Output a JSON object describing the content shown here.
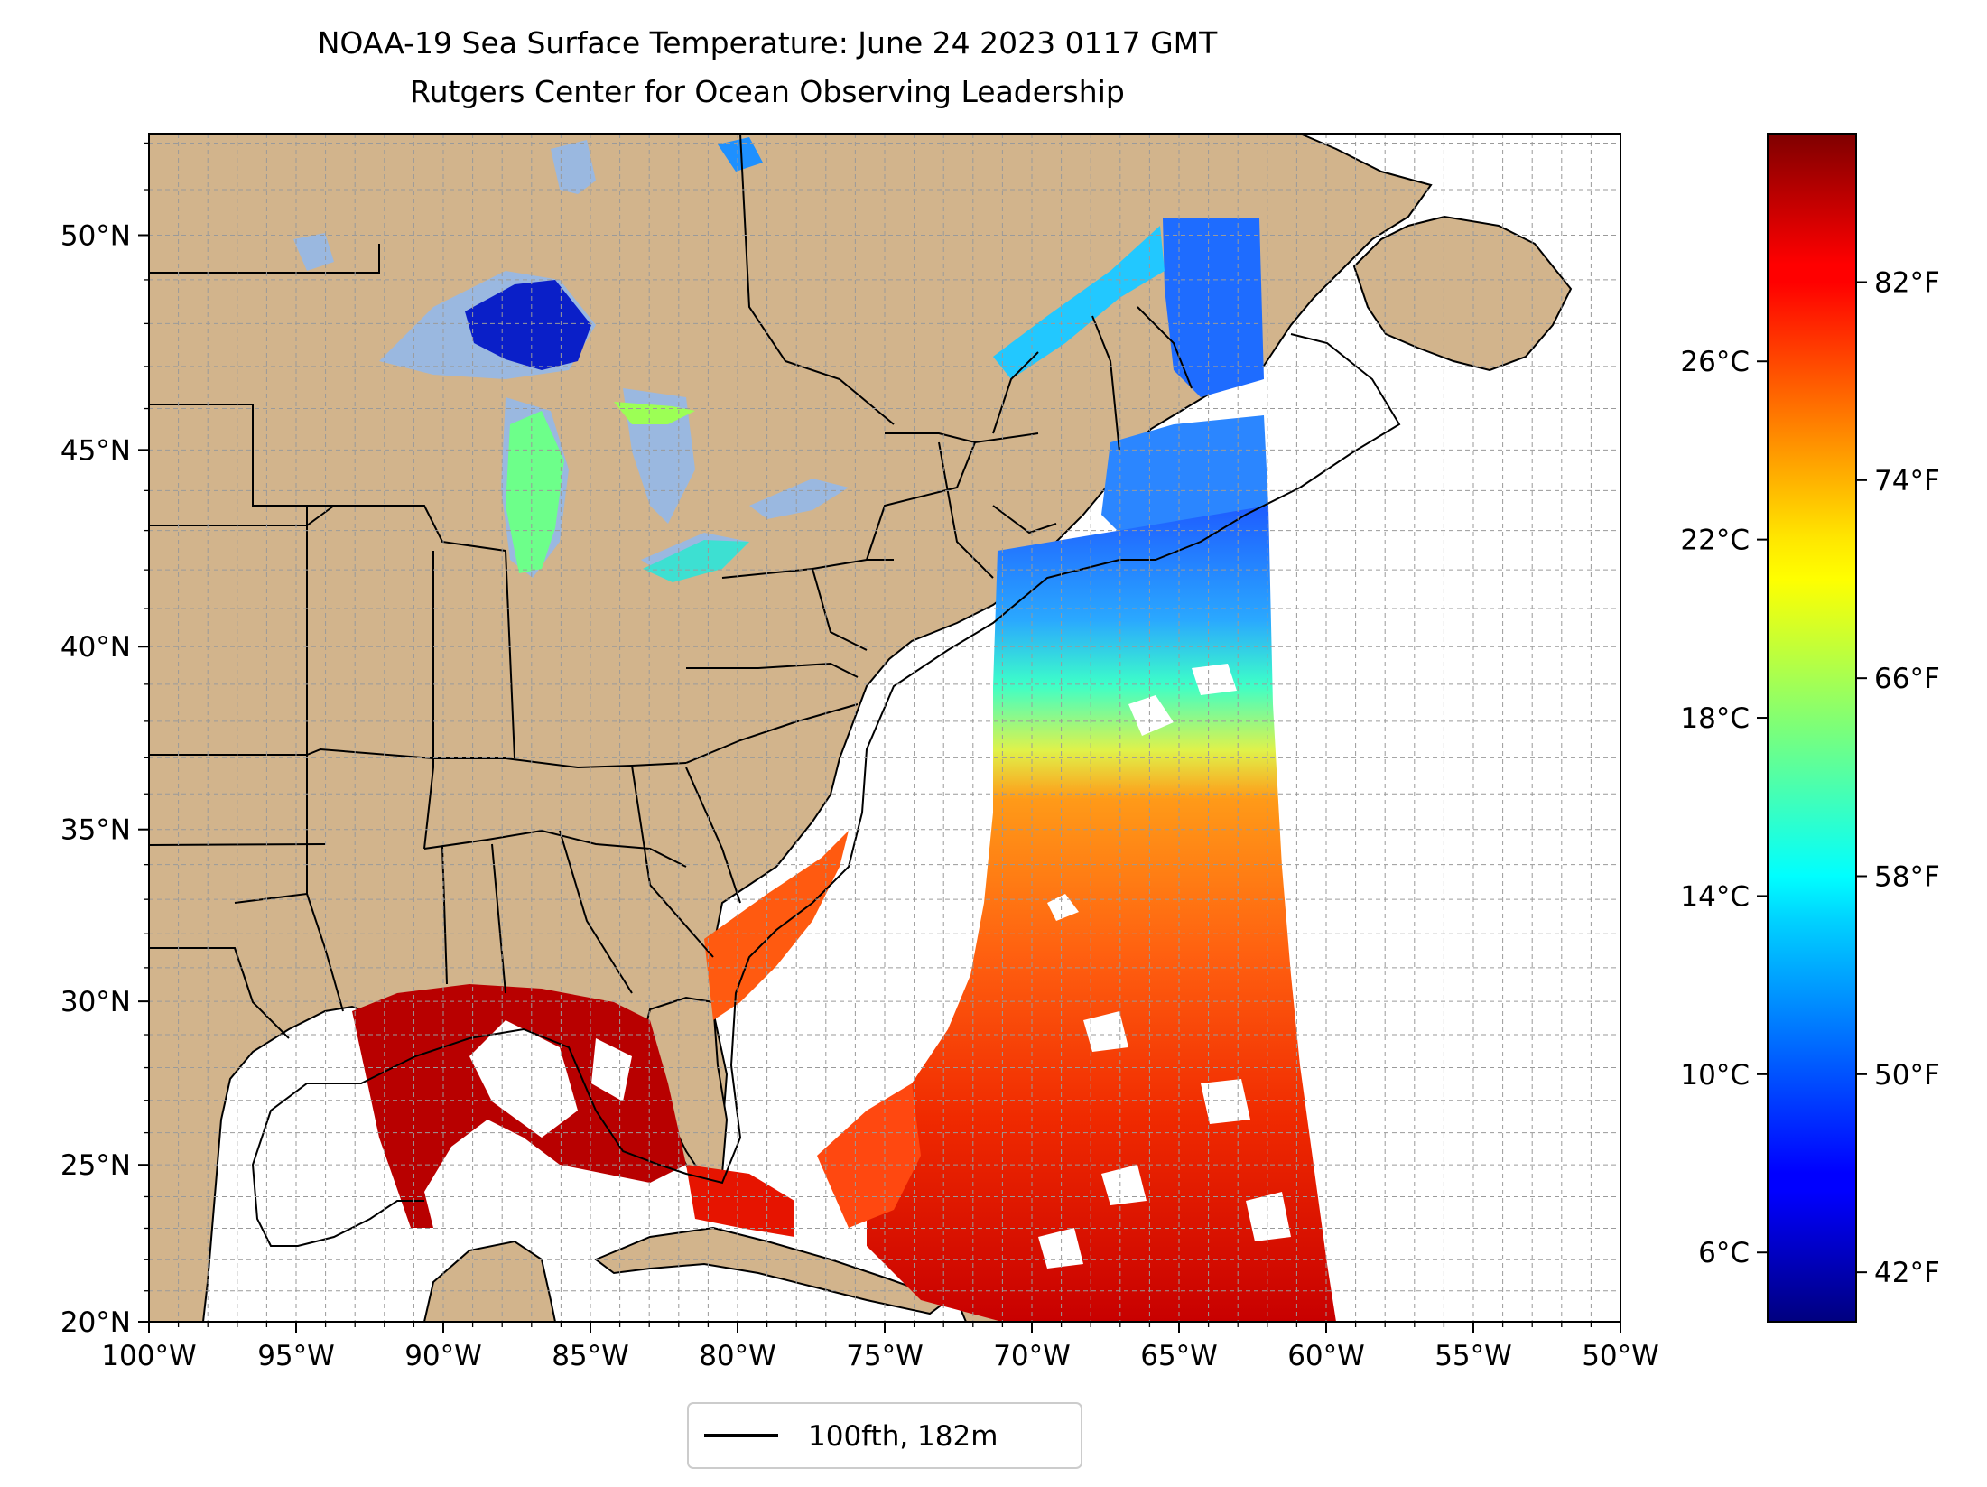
{
  "title": "NOAA-19 Sea Surface Temperature: June 24 2023 0117 GMT",
  "subtitle": "Rutgers Center for Ocean Observing Leadership",
  "map": {
    "extent": {
      "lon": [
        -100,
        -50
      ],
      "lat": [
        20,
        52.2
      ]
    },
    "lon_ticks": [
      {
        "value": -100,
        "label": "100°W"
      },
      {
        "value": -95,
        "label": "95°W"
      },
      {
        "value": -90,
        "label": "90°W"
      },
      {
        "value": -85,
        "label": "85°W"
      },
      {
        "value": -80,
        "label": "80°W"
      },
      {
        "value": -75,
        "label": "75°W"
      },
      {
        "value": -70,
        "label": "70°W"
      },
      {
        "value": -65,
        "label": "65°W"
      },
      {
        "value": -60,
        "label": "60°W"
      },
      {
        "value": -55,
        "label": "55°W"
      },
      {
        "value": -50,
        "label": "50°W"
      }
    ],
    "lat_ticks": [
      {
        "value": 20,
        "label": "20°N"
      },
      {
        "value": 25,
        "label": "25°N"
      },
      {
        "value": 30,
        "label": "30°N"
      },
      {
        "value": 35,
        "label": "35°N"
      },
      {
        "value": 40,
        "label": "40°N"
      },
      {
        "value": 45,
        "label": "45°N"
      },
      {
        "value": 50,
        "label": "50°N"
      }
    ],
    "gridlines": "dashed, every 1 degree",
    "land_color": "#d2b48c",
    "lake_color": "#9ab8e0"
  },
  "colorbar": {
    "colormap": "jet",
    "range_f": [
      40,
      88
    ],
    "fahrenheit_ticks": [
      {
        "value": 42,
        "label": "42°F"
      },
      {
        "value": 50,
        "label": "50°F"
      },
      {
        "value": 58,
        "label": "58°F"
      },
      {
        "value": 66,
        "label": "66°F"
      },
      {
        "value": 74,
        "label": "74°F"
      },
      {
        "value": 82,
        "label": "82°F"
      }
    ],
    "celsius_ticks": [
      {
        "value": 6,
        "label": "6°C"
      },
      {
        "value": 10,
        "label": "10°C"
      },
      {
        "value": 14,
        "label": "14°C"
      },
      {
        "value": 18,
        "label": "18°C"
      },
      {
        "value": 22,
        "label": "22°C"
      },
      {
        "value": 26,
        "label": "26°C"
      }
    ]
  },
  "legend": {
    "label": "100fth, 182m",
    "line_color": "#000000"
  }
}
